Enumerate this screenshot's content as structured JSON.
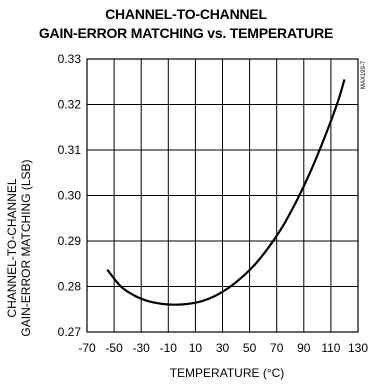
{
  "chart_data": {
    "type": "line",
    "title_line1": "CHANNEL-TO-CHANNEL",
    "title_line2": "GAIN-ERROR MATCHING vs. TEMPERATURE",
    "ylabel_line1": "CHANNEL-TO-CHANNEL",
    "ylabel_line2": "GAIN-ERROR MATCHING (LSB)",
    "xlabel": "TEMPERATURE (°C)",
    "figure_tag": "MAX199-7",
    "xlim": [
      -70,
      130
    ],
    "ylim": [
      0.27,
      0.33
    ],
    "xticks": [
      "-70",
      "-50",
      "-30",
      "-10",
      "10",
      "30",
      "50",
      "70",
      "90",
      "110",
      "130"
    ],
    "yticks": [
      "0.27",
      "0.28",
      "0.29",
      "0.30",
      "0.31",
      "0.32",
      "0.33"
    ],
    "grid": true,
    "series": [
      {
        "x": [
          -55,
          -45,
          -35,
          -25,
          -15,
          -5,
          5,
          15,
          25,
          35,
          45,
          55,
          65,
          75,
          85,
          95,
          105,
          115,
          120
        ],
        "y": [
          0.2837,
          0.28,
          0.278,
          0.2768,
          0.2762,
          0.276,
          0.2762,
          0.2768,
          0.278,
          0.2798,
          0.2822,
          0.2852,
          0.289,
          0.2935,
          0.299,
          0.3053,
          0.3125,
          0.3205,
          0.3255
        ]
      }
    ]
  }
}
